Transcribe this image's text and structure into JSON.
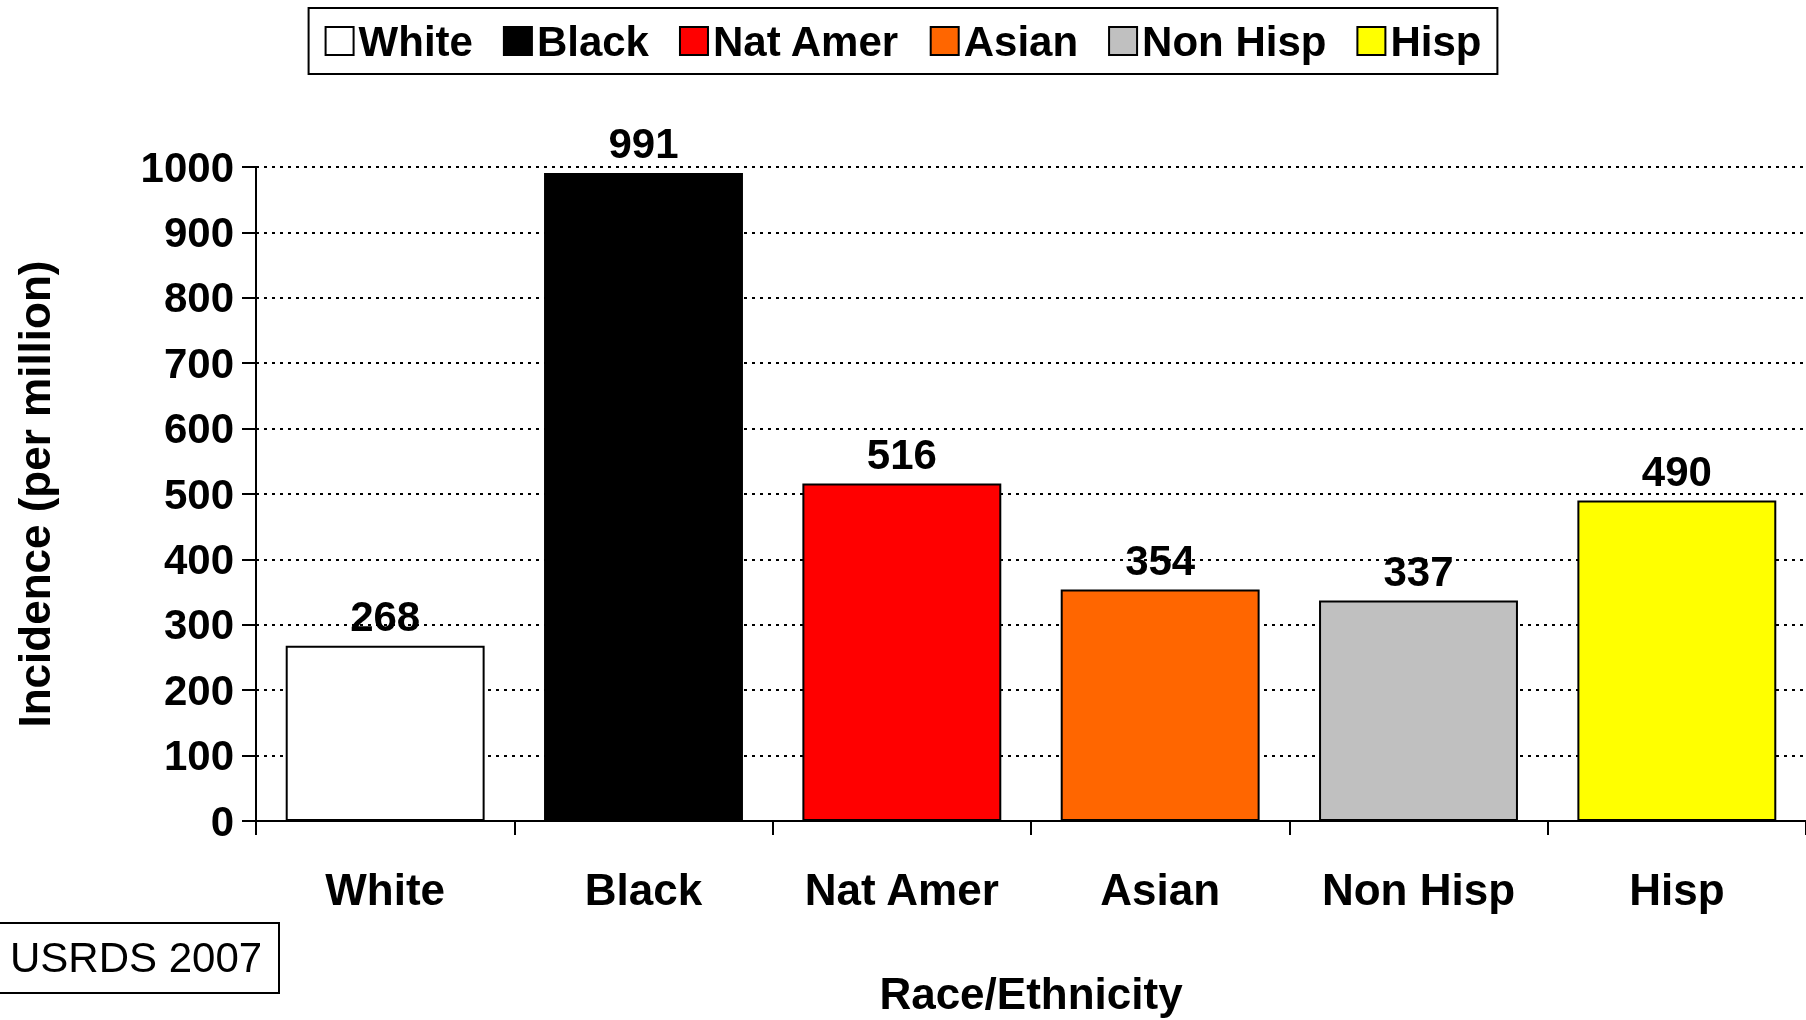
{
  "chart_data": {
    "type": "bar",
    "xlabel": "Race/Ethnicity",
    "ylabel": "Incidence (per million)",
    "categories": [
      "White",
      "Black",
      "Nat Amer",
      "Asian",
      "Non Hisp",
      "Hisp"
    ],
    "stacked": true,
    "series": [
      {
        "name": "White",
        "color": "#ffffff",
        "values": [
          268,
          null,
          null,
          null,
          null,
          null
        ]
      },
      {
        "name": "Black",
        "color": "#000000",
        "values": [
          null,
          991,
          null,
          null,
          null,
          null
        ]
      },
      {
        "name": "Nat Amer",
        "color": "#ff0000",
        "values": [
          null,
          null,
          516,
          null,
          null,
          null
        ]
      },
      {
        "name": "Asian",
        "color": "#ff6600",
        "values": [
          null,
          null,
          null,
          354,
          null,
          null
        ]
      },
      {
        "name": "Non Hisp",
        "color": "#c0c0c0",
        "values": [
          null,
          null,
          null,
          null,
          337,
          null
        ]
      },
      {
        "name": "Hisp",
        "color": "#ffff00",
        "values": [
          null,
          null,
          null,
          null,
          null,
          490
        ]
      }
    ],
    "ylim": [
      0,
      1000
    ],
    "yticks": [
      0,
      100,
      200,
      300,
      400,
      500,
      600,
      700,
      800,
      900,
      1000
    ],
    "grid": "y",
    "legend": "top",
    "data_labels": true,
    "annotations": [
      "USRDS 2007"
    ]
  }
}
